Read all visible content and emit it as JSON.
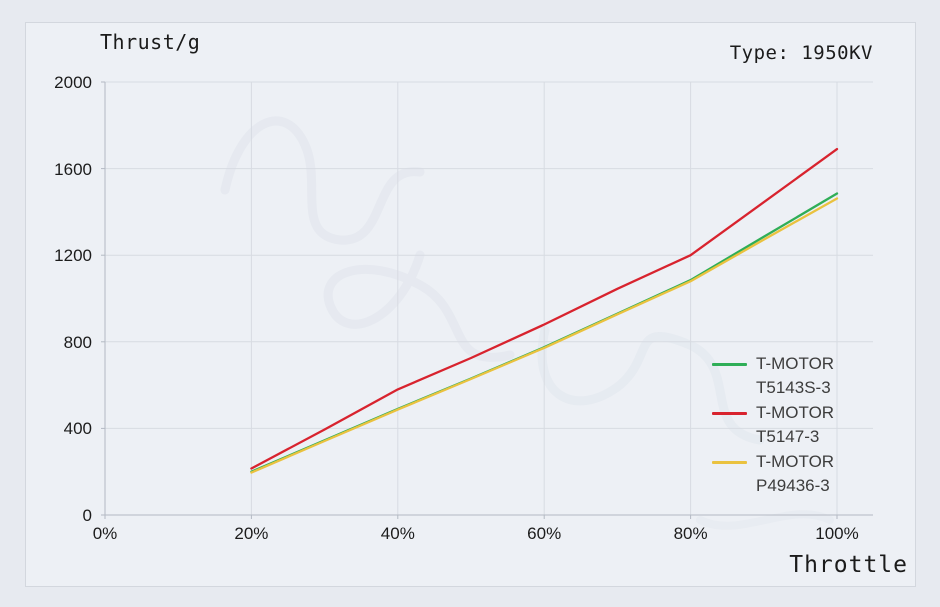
{
  "chart_data": {
    "type": "line",
    "title": "Thrust/g",
    "type_label": "Type: 1950KV",
    "xlabel": "Throttle",
    "grid": true,
    "legend_position": "inside-right",
    "ylim": [
      0,
      2000
    ],
    "y_ticks": [
      0,
      400,
      800,
      1200,
      1600,
      2000
    ],
    "x_tick_labels": [
      "0%",
      "20%",
      "40%",
      "60%",
      "80%",
      "100%"
    ],
    "x_tick_percent": [
      0,
      20,
      40,
      60,
      80,
      100
    ],
    "x_percent": [
      20,
      30,
      40,
      50,
      60,
      70,
      80,
      90,
      100
    ],
    "series": [
      {
        "name": "T-MOTOR T5143S-3",
        "legend_line1": "T-MOTOR",
        "legend_line2": "T5143S-3",
        "color": "#2fae57",
        "values": [
          200,
          345,
          490,
          630,
          775,
          930,
          1085,
          1285,
          1485
        ]
      },
      {
        "name": "T-MOTOR T5147-3",
        "legend_line1": "T-MOTOR",
        "legend_line2": "T5147-3",
        "color": "#d8232e",
        "values": [
          215,
          395,
          580,
          725,
          880,
          1045,
          1200,
          1445,
          1690
        ]
      },
      {
        "name": "T-MOTOR P49436-3",
        "legend_line1": "T-MOTOR",
        "legend_line2": "P49436-3",
        "color": "#eac23f",
        "values": [
          196,
          342,
          487,
          628,
          772,
          927,
          1080,
          1272,
          1462
        ]
      }
    ],
    "colors": {
      "background": "#e7eaf0",
      "panel_background": "#edf0f5",
      "panel_border": "#d3d7de",
      "gridline": "#d7dbe2",
      "axis": "#b3b9c3",
      "text": "#1c1c1c",
      "legend_text": "#3d3d3d",
      "watermark": "#cdd4df"
    },
    "draw_order": [
      0,
      2,
      1
    ]
  }
}
